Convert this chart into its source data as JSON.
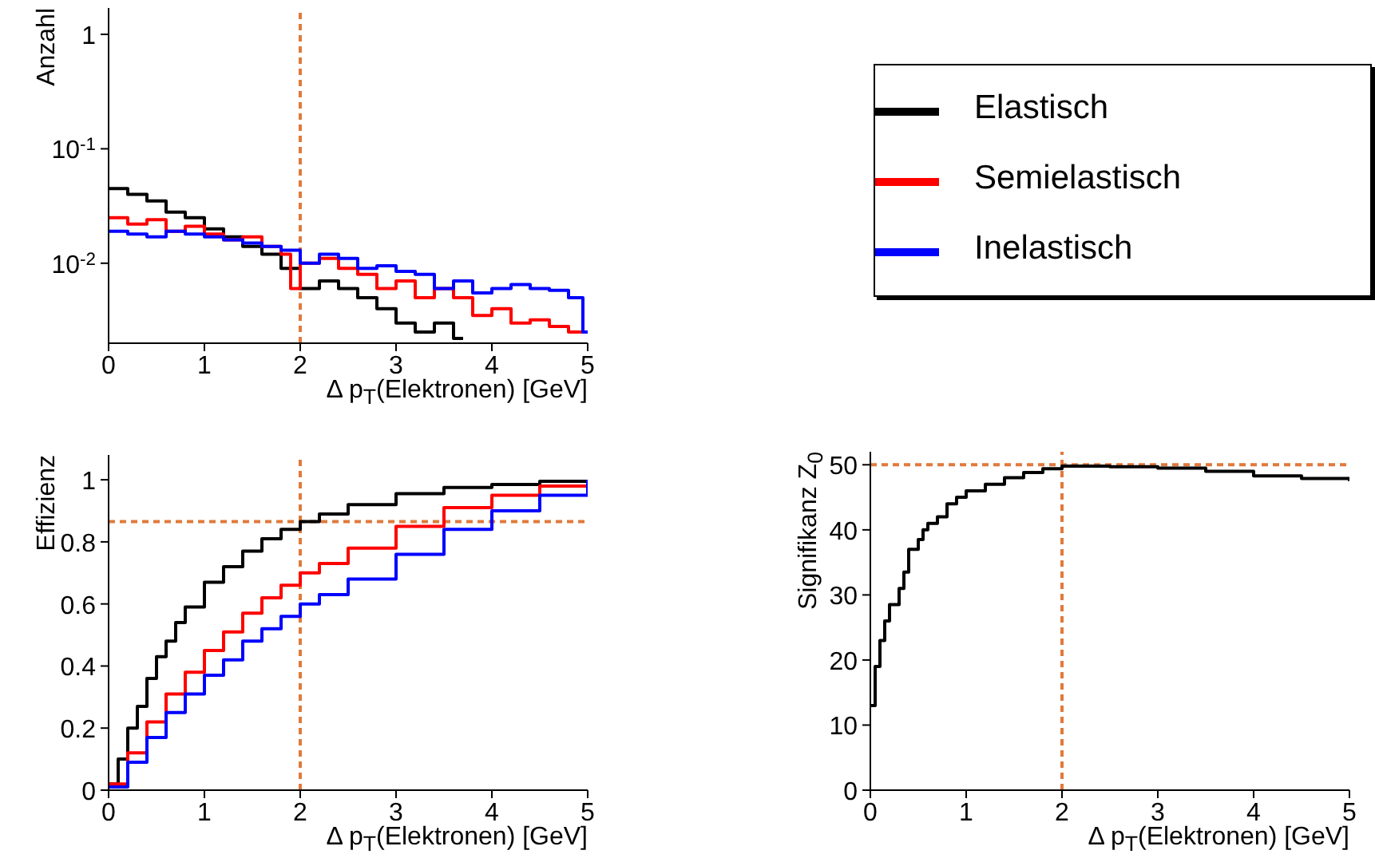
{
  "chart_data": [
    {
      "type": "step",
      "ylabel": "Anzahl",
      "xlabel": "Δ p$_{T}$(Elektronen) [GeV]",
      "xlim": [
        0,
        5
      ],
      "xticks": [
        0,
        1,
        2,
        3,
        4,
        5
      ],
      "ylim": [
        0.002,
        1.7
      ],
      "yticks": [
        1,
        {
          "value": 0.1,
          "label": "10$^{-1}$"
        },
        {
          "value": 0.01,
          "label": "10$^{-2}$"
        }
      ],
      "log": true,
      "grid": false,
      "legend": "right",
      "ref_lines": [
        {
          "axis": "x",
          "value": 2,
          "color": "#e07a3c",
          "line_style": "dashed"
        }
      ],
      "series": [
        {
          "name": "Elastisch",
          "color": "#000000",
          "x": [
            0,
            0.2,
            0.4,
            0.6,
            0.8,
            1.0,
            1.2,
            1.4,
            1.6,
            1.8,
            2.0,
            2.2,
            2.4,
            2.6,
            2.8,
            3.0,
            3.2,
            3.4,
            3.6,
            3.7
          ],
          "values": [
            0.045,
            0.04,
            0.035,
            0.028,
            0.025,
            0.02,
            0.017,
            0.014,
            0.012,
            0.009,
            0.006,
            0.007,
            0.006,
            0.005,
            0.004,
            0.003,
            0.0025,
            0.003,
            0.0022,
            0.0022
          ]
        },
        {
          "name": "Semielastisch",
          "color": "#ff0000",
          "x": [
            0,
            0.2,
            0.4,
            0.6,
            0.8,
            1.0,
            1.2,
            1.4,
            1.6,
            1.8,
            1.9,
            2.0,
            2.2,
            2.4,
            2.6,
            2.8,
            3.0,
            3.2,
            3.4,
            3.6,
            3.8,
            4.0,
            4.2,
            4.4,
            4.6,
            4.8,
            5.0
          ],
          "values": [
            0.025,
            0.022,
            0.024,
            0.019,
            0.021,
            0.018,
            0.016,
            0.017,
            0.014,
            0.012,
            0.006,
            0.01,
            0.011,
            0.009,
            0.008,
            0.006,
            0.007,
            0.005,
            0.006,
            0.005,
            0.0035,
            0.004,
            0.003,
            0.0032,
            0.0028,
            0.0025,
            0.0025
          ]
        },
        {
          "name": "Inelastisch",
          "color": "#0000ff",
          "x": [
            0,
            0.2,
            0.4,
            0.6,
            0.8,
            1.0,
            1.2,
            1.4,
            1.6,
            1.8,
            2.0,
            2.2,
            2.4,
            2.6,
            2.8,
            3.0,
            3.2,
            3.4,
            3.6,
            3.8,
            4.0,
            4.2,
            4.4,
            4.6,
            4.8,
            4.95,
            5.0
          ],
          "values": [
            0.019,
            0.018,
            0.017,
            0.019,
            0.018,
            0.017,
            0.016,
            0.015,
            0.014,
            0.013,
            0.01,
            0.012,
            0.011,
            0.009,
            0.0095,
            0.0085,
            0.008,
            0.006,
            0.007,
            0.0055,
            0.006,
            0.0065,
            0.006,
            0.0058,
            0.005,
            0.0025,
            0.0025
          ]
        }
      ]
    },
    {
      "type": "step",
      "ylabel": "Effizienz",
      "xlabel": "Δ p$_{T}$(Elektronen) [GeV]",
      "xlim": [
        0,
        5
      ],
      "xticks": [
        0,
        1,
        2,
        3,
        4,
        5
      ],
      "ylim": [
        0,
        1.08
      ],
      "yticks": [
        0,
        0.2,
        0.4,
        0.6,
        0.8,
        1
      ],
      "grid": false,
      "ref_lines": [
        {
          "axis": "x",
          "value": 2,
          "color": "#e07a3c",
          "line_style": "dashed"
        },
        {
          "axis": "y",
          "value": 0.865,
          "color": "#e07a3c",
          "line_style": "dashed"
        }
      ],
      "series": [
        {
          "color": "#000000",
          "x": [
            0,
            0.1,
            0.2,
            0.3,
            0.4,
            0.5,
            0.6,
            0.7,
            0.8,
            1.0,
            1.2,
            1.4,
            1.6,
            1.8,
            2.0,
            2.2,
            2.5,
            3.0,
            3.5,
            4.0,
            4.5,
            5.0
          ],
          "values": [
            0.02,
            0.1,
            0.2,
            0.27,
            0.36,
            0.43,
            0.48,
            0.54,
            0.59,
            0.67,
            0.72,
            0.77,
            0.81,
            0.84,
            0.865,
            0.89,
            0.92,
            0.955,
            0.975,
            0.985,
            0.995,
            1.0
          ]
        },
        {
          "color": "#ff0000",
          "x": [
            0,
            0.2,
            0.4,
            0.6,
            0.8,
            1.0,
            1.2,
            1.4,
            1.6,
            1.8,
            2.0,
            2.2,
            2.5,
            3.0,
            3.5,
            4.0,
            4.5,
            5.0
          ],
          "values": [
            0.02,
            0.12,
            0.22,
            0.31,
            0.38,
            0.45,
            0.51,
            0.57,
            0.62,
            0.66,
            0.7,
            0.73,
            0.78,
            0.85,
            0.91,
            0.95,
            0.98,
            1.0
          ]
        },
        {
          "color": "#0000ff",
          "x": [
            0,
            0.2,
            0.4,
            0.6,
            0.8,
            1.0,
            1.2,
            1.4,
            1.6,
            1.8,
            2.0,
            2.2,
            2.5,
            3.0,
            3.5,
            4.0,
            4.5,
            5.0
          ],
          "values": [
            0.01,
            0.09,
            0.17,
            0.25,
            0.31,
            0.37,
            0.42,
            0.48,
            0.52,
            0.56,
            0.6,
            0.63,
            0.68,
            0.76,
            0.84,
            0.9,
            0.95,
            1.0
          ]
        }
      ]
    },
    {
      "type": "step",
      "ylabel": "Signifikanz Z$_{0}$",
      "xlabel": "Δ p$_{T}$(Elektronen) [GeV]",
      "xlim": [
        0,
        5
      ],
      "xticks": [
        0,
        1,
        2,
        3,
        4,
        5
      ],
      "ylim": [
        0,
        52
      ],
      "yticks": [
        0,
        10,
        20,
        30,
        40,
        50
      ],
      "grid": false,
      "ref_lines": [
        {
          "axis": "x",
          "value": 2,
          "color": "#e07a3c",
          "line_style": "dashed"
        },
        {
          "axis": "y",
          "value": 50,
          "color": "#e07a3c",
          "line_style": "dashed"
        }
      ],
      "series": [
        {
          "color": "#000000",
          "x": [
            0,
            0.05,
            0.1,
            0.15,
            0.2,
            0.3,
            0.35,
            0.4,
            0.5,
            0.55,
            0.6,
            0.7,
            0.8,
            0.9,
            1.0,
            1.2,
            1.4,
            1.6,
            1.8,
            2.0,
            2.5,
            3.0,
            3.5,
            4.0,
            4.5,
            5.0
          ],
          "values": [
            13,
            19,
            23,
            26,
            28.5,
            31,
            33.5,
            37,
            38.5,
            40,
            41,
            42,
            44,
            45,
            46,
            47,
            48,
            48.8,
            49.4,
            49.8,
            49.7,
            49.5,
            49,
            48.3,
            47.9,
            47.5
          ]
        }
      ]
    }
  ]
}
